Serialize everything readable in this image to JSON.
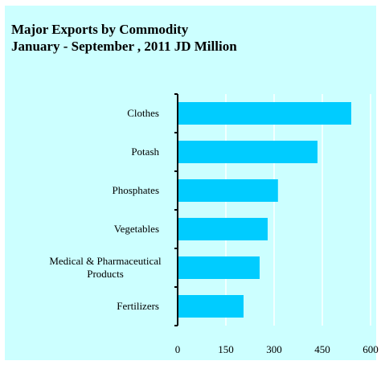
{
  "title_lines": [
    "Major Exports by Commodity",
    "January - September , 2011   JD Million"
  ],
  "colors": {
    "panel_background": "#ccffff",
    "bar": "#00ccff",
    "gridline": "#ffffff",
    "axis": "#000000"
  },
  "chart_data": {
    "type": "bar",
    "orientation": "horizontal",
    "title": "Major Exports by Commodity",
    "subtitle": "January - September , 2011   JD Million",
    "categories": [
      "Clothes",
      "Potash",
      "Phosphates",
      "Vegetables",
      "Medical & Pharmaceutical Products",
      "Fertilizers"
    ],
    "category_label_lines": [
      [
        "Clothes"
      ],
      [
        "Potash"
      ],
      [
        "Phosphates"
      ],
      [
        "Vegetables"
      ],
      [
        "Medical & Pharmaceutical",
        "Products"
      ],
      [
        "Fertilizers"
      ]
    ],
    "values": [
      540,
      435,
      312,
      280,
      255,
      205
    ],
    "xlim": [
      0,
      600
    ],
    "xticks": [
      0,
      150,
      300,
      450,
      600
    ],
    "grid": true,
    "legend": "none"
  }
}
